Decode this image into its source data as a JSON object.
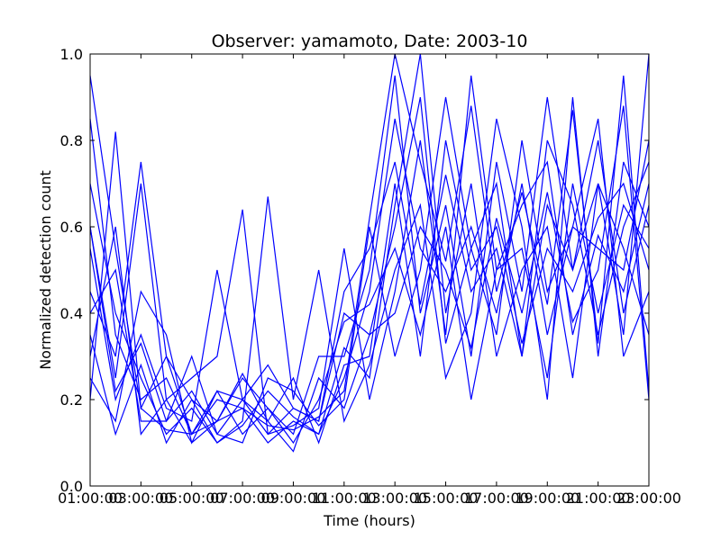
{
  "chart_data": {
    "type": "line",
    "title": "Observer: yamamoto, Date: 2003-10",
    "xlabel": "Time (hours)",
    "ylabel": "Normalized detection count",
    "ylim": [
      0,
      1
    ],
    "xlim": [
      1,
      23
    ],
    "x_tick_labels": [
      "01:00:00",
      "03:00:00",
      "05:00:00",
      "07:00:00",
      "09:00:00",
      "11:00:00",
      "13:00:00",
      "15:00:00",
      "17:00:00",
      "19:00:00",
      "21:00:00",
      "23:00:00"
    ],
    "x_tick_label_overlaps": [
      "3",
      "5",
      "7",
      "9",
      "11",
      "13",
      "15",
      "17",
      "19",
      "21",
      "23",
      ""
    ],
    "y_ticks": [
      "0.0",
      "0.2",
      "0.4",
      "0.6",
      "0.8",
      "1.0"
    ],
    "grid": false,
    "legend": "none",
    "line_color": "#0000ff",
    "x": [
      1,
      2,
      3,
      4,
      5,
      6,
      7,
      8,
      9,
      10,
      11,
      12,
      13,
      14,
      15,
      16,
      17,
      18,
      19,
      20,
      21,
      22,
      23
    ],
    "series": [
      {
        "values": [
          0.95,
          0.55,
          0.18,
          0.13,
          0.12,
          0.15,
          0.18,
          0.14,
          0.13,
          0.16,
          0.22,
          0.62,
          1.0,
          0.75,
          0.52,
          0.88,
          0.45,
          0.68,
          0.42,
          0.87,
          0.33,
          0.95,
          0.22
        ]
      },
      {
        "values": [
          0.6,
          0.25,
          0.7,
          0.2,
          0.1,
          0.15,
          0.25,
          0.18,
          0.12,
          0.3,
          0.3,
          0.5,
          0.95,
          0.4,
          0.65,
          0.3,
          0.75,
          0.45,
          0.9,
          0.5,
          0.7,
          0.35,
          1.0
        ]
      },
      {
        "values": [
          0.2,
          0.82,
          0.18,
          0.3,
          0.12,
          0.22,
          0.2,
          0.12,
          0.18,
          0.15,
          0.4,
          0.35,
          0.6,
          0.9,
          0.33,
          0.55,
          0.7,
          0.3,
          0.65,
          0.5,
          0.8,
          0.4,
          0.65
        ]
      },
      {
        "values": [
          0.45,
          0.3,
          0.75,
          0.3,
          0.2,
          0.1,
          0.14,
          0.22,
          0.16,
          0.12,
          0.25,
          0.45,
          0.85,
          0.55,
          0.45,
          0.6,
          0.4,
          0.7,
          0.35,
          0.6,
          0.55,
          0.5,
          0.8
        ]
      },
      {
        "values": [
          0.55,
          0.2,
          0.35,
          0.18,
          0.15,
          0.5,
          0.2,
          0.15,
          0.25,
          0.1,
          0.28,
          0.3,
          0.7,
          0.3,
          0.8,
          0.5,
          0.6,
          0.33,
          0.55,
          0.45,
          0.62,
          0.7,
          0.5
        ]
      },
      {
        "values": [
          0.3,
          0.6,
          0.12,
          0.2,
          0.25,
          0.3,
          0.64,
          0.12,
          0.14,
          0.18,
          0.55,
          0.2,
          0.45,
          0.8,
          0.35,
          0.95,
          0.5,
          0.55,
          0.25,
          0.7,
          0.4,
          0.65,
          0.55
        ]
      },
      {
        "values": [
          0.7,
          0.4,
          0.25,
          0.12,
          0.18,
          0.1,
          0.15,
          0.67,
          0.2,
          0.5,
          0.15,
          0.28,
          0.5,
          0.65,
          0.25,
          0.4,
          0.85,
          0.6,
          0.2,
          0.9,
          0.3,
          0.75,
          0.6
        ]
      },
      {
        "values": [
          0.25,
          0.15,
          0.45,
          0.35,
          0.1,
          0.22,
          0.12,
          0.18,
          0.1,
          0.2,
          0.38,
          0.42,
          0.55,
          0.35,
          0.6,
          0.2,
          0.5,
          0.65,
          0.75,
          0.35,
          0.58,
          0.45,
          0.7
        ]
      },
      {
        "values": [
          0.4,
          0.5,
          0.15,
          0.15,
          0.3,
          0.12,
          0.1,
          0.25,
          0.22,
          0.14,
          0.2,
          0.6,
          0.3,
          0.5,
          0.9,
          0.55,
          0.35,
          0.8,
          0.45,
          0.6,
          0.85,
          0.3,
          0.45
        ]
      },
      {
        "values": [
          0.85,
          0.35,
          0.2,
          0.25,
          0.12,
          0.2,
          0.18,
          0.1,
          0.15,
          0.12,
          0.32,
          0.25,
          0.65,
          1.0,
          0.4,
          0.7,
          0.3,
          0.5,
          0.6,
          0.25,
          0.7,
          0.55,
          0.35
        ]
      },
      {
        "values": [
          0.35,
          0.12,
          0.28,
          0.1,
          0.2,
          0.15,
          0.26,
          0.15,
          0.08,
          0.25,
          0.18,
          0.35,
          0.4,
          0.6,
          0.5,
          0.32,
          0.62,
          0.4,
          0.68,
          0.38,
          0.5,
          0.88,
          0.2
        ]
      },
      {
        "values": [
          0.6,
          0.22,
          0.33,
          0.15,
          0.22,
          0.12,
          0.2,
          0.28,
          0.18,
          0.15,
          0.45,
          0.55,
          0.75,
          0.42,
          0.72,
          0.45,
          0.55,
          0.3,
          0.8,
          0.65,
          0.35,
          0.6,
          0.75
        ]
      }
    ]
  }
}
